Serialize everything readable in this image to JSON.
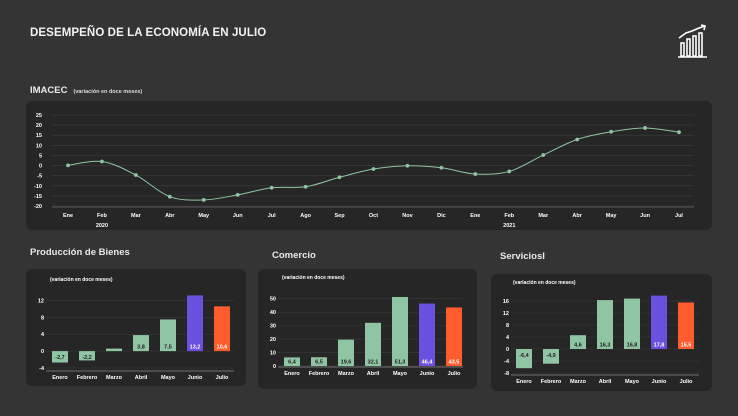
{
  "page": {
    "title": "DESEMPEÑO DE LA ECONOMÍA EN JULIO",
    "icon": "bar-chart-growth-icon"
  },
  "colors": {
    "background": "#343434",
    "panel": "#262626",
    "bar_green": "#8fc5a3",
    "bar_purple": "#6b4fe0",
    "bar_orange": "#ff5c2e",
    "line": "#8fc5a3"
  },
  "imacec": {
    "title": "IMACEC",
    "subtitle": "(variación en doce meses)"
  },
  "produccion": {
    "title": "Producción de Bienes",
    "subtitle": "(variación en doce meses)"
  },
  "comercio": {
    "title": "Comercio",
    "subtitle": "(variación en doce meses)"
  },
  "servicios": {
    "title": "ServiciosI",
    "subtitle": "(variación en doce meses)"
  },
  "chart_data": [
    {
      "id": "imacec",
      "type": "line",
      "title": "IMACEC",
      "subtitle": "(variación en doce meses)",
      "x": [
        "Ene",
        "Feb",
        "Mar",
        "Abr",
        "May",
        "Jun",
        "Jul",
        "Ago",
        "Sep",
        "Oct",
        "Nov",
        "Dic",
        "Ene",
        "Feb",
        "Mar",
        "Abr",
        "May",
        "Jun",
        "Jul"
      ],
      "years": [
        {
          "label": "2020",
          "start": 0
        },
        {
          "label": "2021",
          "start": 12
        }
      ],
      "values": [
        0.1,
        2.0,
        -4.7,
        -15.4,
        -17.0,
        -14.5,
        -11.0,
        -10.5,
        -5.8,
        -1.7,
        -0.1,
        -1.1,
        -4.2,
        -2.9,
        5.2,
        12.9,
        16.7,
        18.6,
        16.5
      ],
      "ylim": [
        -20,
        25
      ],
      "yticks": [
        25,
        20,
        15,
        10,
        5,
        0,
        -5,
        -10,
        -15,
        -20
      ],
      "grid": true
    },
    {
      "id": "produccion",
      "type": "bar",
      "title": "Producción de Bienes",
      "subtitle": "(variación en doce meses)",
      "categories": [
        "Enero",
        "Febrero",
        "Marzo",
        "Abril",
        "Mayo",
        "Junio",
        "Julio"
      ],
      "values": [
        -2.7,
        -2.2,
        0.6,
        3.8,
        7.5,
        13.2,
        10.6
      ],
      "labels": [
        "-2,7",
        "-2,2",
        "0,6",
        "3,8",
        "7,5",
        "13,2",
        "10,6"
      ],
      "colors": [
        "green",
        "green",
        "green",
        "green",
        "green",
        "purple",
        "orange"
      ],
      "ylim": [
        -4,
        14
      ],
      "yticks": [
        12,
        8,
        4,
        0,
        -4
      ]
    },
    {
      "id": "comercio",
      "type": "bar",
      "title": "Comercio",
      "subtitle": "(variación en doce meses)",
      "categories": [
        "Enero",
        "Febrero",
        "Marzo",
        "Abril",
        "Mayo",
        "Junio",
        "Julio"
      ],
      "values": [
        6.4,
        6.5,
        19.6,
        32.1,
        51.3,
        46.4,
        43.5
      ],
      "labels": [
        "6,4",
        "6,5",
        "19,6",
        "32,1",
        "51,3",
        "46,4",
        "43,5"
      ],
      "colors": [
        "green",
        "green",
        "green",
        "green",
        "green",
        "purple",
        "orange"
      ],
      "ylim": [
        0,
        55
      ],
      "yticks": [
        50,
        40,
        30,
        20,
        10,
        0
      ]
    },
    {
      "id": "servicios",
      "type": "bar",
      "title": "ServiciosI",
      "subtitle": "(variación en doce meses)",
      "categories": [
        "Enero",
        "Febrero",
        "Marzo",
        "Abril",
        "Mayo",
        "Junio",
        "Julio"
      ],
      "values": [
        -6.4,
        -4.9,
        4.6,
        16.3,
        16.8,
        17.8,
        15.5
      ],
      "labels": [
        "-6,4",
        "-4,9",
        "4,6",
        "16,3",
        "16,8",
        "17,8",
        "15,5"
      ],
      "colors": [
        "green",
        "green",
        "green",
        "green",
        "green",
        "purple",
        "orange"
      ],
      "ylim": [
        -8,
        18
      ],
      "yticks": [
        16,
        12,
        8,
        4,
        0,
        -4,
        -8
      ]
    }
  ]
}
